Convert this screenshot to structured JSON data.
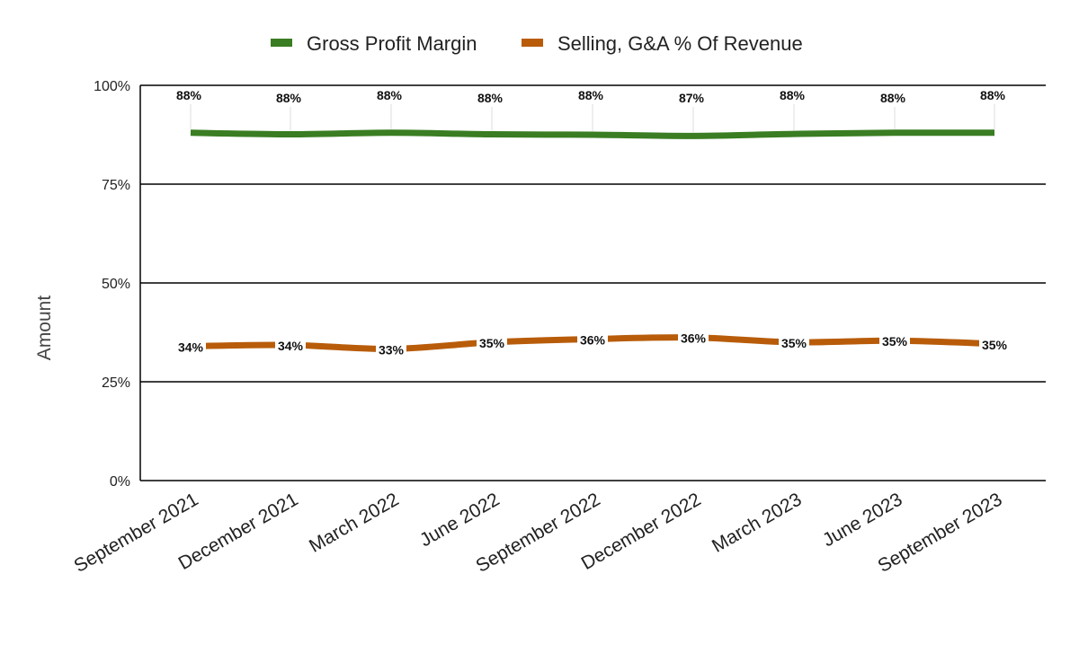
{
  "chart_data": {
    "type": "line",
    "title": "",
    "xlabel": "",
    "ylabel": "Amount",
    "ylim": [
      0,
      100
    ],
    "yticks": [
      {
        "value": 0,
        "label": "0%"
      },
      {
        "value": 25,
        "label": "25%"
      },
      {
        "value": 50,
        "label": "50%"
      },
      {
        "value": 75,
        "label": "75%"
      },
      {
        "value": 100,
        "label": "100%"
      }
    ],
    "grid": true,
    "legend_position": "top",
    "categories": [
      "September 2021",
      "December 2021",
      "March 2022",
      "June 2022",
      "September 2022",
      "December 2022",
      "March 2023",
      "June 2023",
      "September 2023"
    ],
    "series": [
      {
        "name": "Gross Profit Margin",
        "color": "#3a7d22",
        "values": [
          88,
          87.6,
          88,
          87.6,
          87.5,
          87.2,
          87.7,
          88,
          88
        ],
        "labels": [
          "88%",
          "88%",
          "88%",
          "88%",
          "88%",
          "87%",
          "88%",
          "88%",
          "88%"
        ],
        "label_position": "top"
      },
      {
        "name": "Selling, G&A % Of Revenue",
        "color": "#b85c0a",
        "values": [
          34,
          34.3,
          33.3,
          35,
          35.8,
          36.2,
          35,
          35.4,
          34.6
        ],
        "labels": [
          "34%",
          "34%",
          "33%",
          "35%",
          "36%",
          "36%",
          "35%",
          "35%",
          "35%"
        ],
        "label_position": "inline"
      }
    ]
  }
}
